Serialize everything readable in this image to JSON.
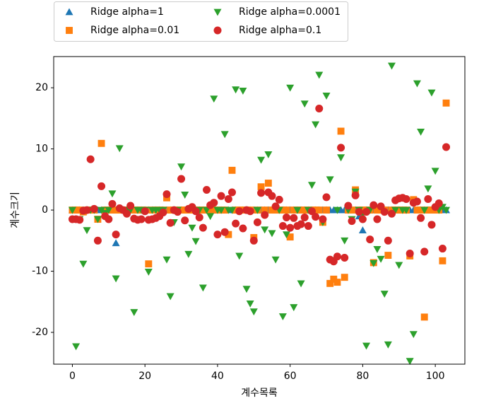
{
  "chart_data": {
    "type": "scatter",
    "xlabel": "계수목록",
    "ylabel": "계수크기",
    "xlim": [
      -5.15,
      108.15
    ],
    "ylim": [
      -25.2,
      25.1
    ],
    "xticks": [
      0,
      20,
      40,
      60,
      80,
      100
    ],
    "yticks": [
      -20,
      -10,
      0,
      10,
      20
    ],
    "legend": "upper left outside",
    "legend_columns": 2,
    "x": [
      0,
      1,
      2,
      3,
      4,
      5,
      6,
      7,
      8,
      9,
      10,
      11,
      12,
      13,
      14,
      15,
      16,
      17,
      18,
      19,
      20,
      21,
      22,
      23,
      24,
      25,
      26,
      27,
      28,
      29,
      30,
      31,
      32,
      33,
      34,
      35,
      36,
      37,
      38,
      39,
      40,
      41,
      42,
      43,
      44,
      45,
      46,
      47,
      48,
      49,
      50,
      51,
      52,
      53,
      54,
      55,
      56,
      57,
      58,
      59,
      60,
      61,
      62,
      63,
      64,
      65,
      66,
      67,
      68,
      69,
      70,
      71,
      72,
      73,
      74,
      75,
      76,
      77,
      78,
      79,
      80,
      81,
      82,
      83,
      84,
      85,
      86,
      87,
      88,
      89,
      90,
      91,
      92,
      93,
      94,
      95,
      96,
      97,
      98,
      99,
      100,
      101,
      102,
      103
    ],
    "series": [
      {
        "name": "Ridge alpha=1",
        "color": "#1f77b4",
        "marker": "^",
        "values": [
          0,
          0,
          0,
          0,
          0,
          0,
          0,
          0,
          0,
          0,
          0,
          0,
          -5.4,
          0,
          0,
          0,
          0,
          0,
          0,
          0,
          0,
          0,
          0,
          0,
          0,
          0,
          0,
          0,
          0,
          0,
          0,
          0,
          0,
          0,
          0,
          0,
          0,
          0,
          0,
          0,
          0,
          0,
          0,
          0,
          0,
          0,
          0,
          0,
          0,
          0,
          0,
          0,
          0,
          0,
          0,
          0,
          0,
          0,
          0,
          0,
          0,
          0,
          0,
          0,
          0,
          0,
          0,
          0,
          0,
          0,
          0,
          0,
          0,
          0,
          0,
          0,
          0,
          0,
          0,
          -1,
          -3.3,
          0,
          0,
          0,
          0,
          0,
          0,
          0,
          0,
          0,
          0,
          0,
          0,
          0,
          0,
          0,
          0,
          0,
          0,
          0,
          0,
          0,
          0,
          0
        ]
      },
      {
        "name": "Ridge alpha=0.01",
        "color": "#ff7f0e",
        "marker": "s",
        "values": [
          0,
          0,
          0,
          -0.3,
          0,
          0,
          0,
          -1.5,
          10.9,
          0,
          0,
          0,
          0,
          0,
          0,
          0,
          0,
          0,
          0,
          0,
          0,
          -8.8,
          0,
          0,
          0,
          0,
          2,
          0,
          0,
          0,
          0,
          0,
          0,
          0,
          0,
          0,
          0,
          0,
          0,
          0,
          0,
          0,
          0,
          -4,
          6.5,
          0,
          0,
          0,
          0,
          0,
          -4.5,
          0,
          3.8,
          0,
          4.4,
          0,
          0,
          0,
          0,
          0,
          -4.4,
          0,
          0,
          0,
          0,
          0,
          0,
          0,
          0,
          -2,
          0,
          -12,
          -11.3,
          -11.8,
          12.9,
          -11,
          0,
          0,
          3.3,
          0,
          0,
          0,
          0,
          -8.6,
          0,
          0,
          0,
          -7.4,
          0,
          0,
          0,
          0,
          0,
          -7.5,
          1.7,
          0,
          0,
          -17.5,
          0,
          0,
          0,
          0,
          -8.3,
          17.5
        ]
      },
      {
        "name": "Ridge alpha=0.0001",
        "color": "#2ca02c",
        "marker": "v",
        "values": [
          0,
          -22.3,
          -1.5,
          -8.8,
          -3.3,
          0,
          0,
          -1.5,
          0,
          -0.5,
          0,
          2.7,
          -11.2,
          10.1,
          0,
          0,
          0,
          -16.7,
          0,
          0,
          0,
          -10.1,
          0,
          0,
          0,
          0,
          -8.1,
          -14.1,
          -2,
          0,
          7.1,
          2.5,
          -7.2,
          -2.9,
          -5.1,
          0,
          -12.7,
          0,
          -1,
          18.2,
          0,
          0,
          12.4,
          0,
          0,
          19.7,
          -7.5,
          19.5,
          -12.9,
          -15.3,
          -16.6,
          0,
          8.2,
          -3.2,
          9.1,
          -3.8,
          -8.1,
          0,
          -17.4,
          -4,
          20,
          -15.9,
          0,
          -12,
          17.4,
          0,
          4.1,
          14,
          22.1,
          -2,
          18.7,
          5,
          -8.2,
          0,
          8.6,
          -5,
          0,
          -1.5,
          3,
          0,
          -0.7,
          -22.2,
          0,
          -8.7,
          -6.4,
          -8,
          -13.7,
          -22,
          23.6,
          0,
          -9,
          0,
          0,
          -24.7,
          -20.3,
          20.7,
          12.8,
          0,
          3.5,
          19.2,
          6.4,
          0,
          0.5,
          0
        ]
      },
      {
        "name": "Ridge alpha=0.1",
        "color": "#d62728",
        "marker": "o",
        "values": [
          -1.5,
          -1.5,
          -1.6,
          -0.1,
          0,
          8.3,
          0.2,
          -5,
          3.9,
          -1,
          -1.5,
          1,
          -4,
          0.3,
          0,
          -0.6,
          0.7,
          -1.4,
          -1.6,
          -1.5,
          -0.2,
          -1.6,
          -1.5,
          -1.3,
          -1,
          -0.4,
          2.6,
          -2.1,
          0,
          -0.3,
          5.1,
          -1.7,
          0.2,
          0.5,
          -0.2,
          -1.2,
          -2.9,
          3.3,
          0.8,
          1.2,
          -4,
          2.3,
          -3.6,
          1.8,
          2.9,
          -2.2,
          -0.2,
          -3,
          0,
          -0.2,
          -5,
          -2,
          2.8,
          -0.8,
          2.9,
          2.3,
          0.6,
          1.7,
          -2.6,
          -1.2,
          -2.9,
          -1.3,
          -2.6,
          -2.3,
          -1.2,
          -2.6,
          -0.2,
          -1.1,
          16.6,
          -1.5,
          2.1,
          -8.1,
          -8.4,
          -7.6,
          10.2,
          -7.8,
          0.7,
          -1.8,
          2.4,
          -0.3,
          -1.5,
          -0.3,
          -4.8,
          0.8,
          -1.5,
          0.6,
          -0.3,
          -5,
          -0.6,
          1.6,
          1.9,
          2,
          1.8,
          -7.1,
          1.2,
          1.4,
          -1.3,
          -6.8,
          1.8,
          -2.4,
          0.5,
          1.1,
          -6.3,
          10.3
        ]
      }
    ]
  }
}
